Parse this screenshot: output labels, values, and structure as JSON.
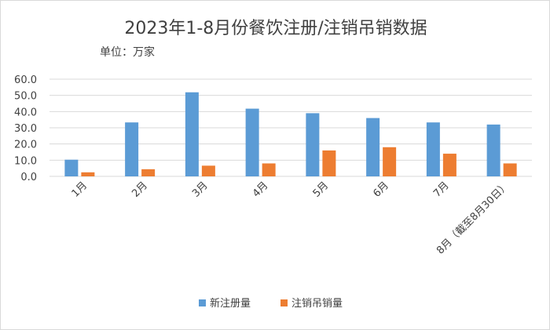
{
  "chart_data": {
    "type": "bar",
    "title": "2023年1-8月份餐饮注册/注销吊销数据",
    "subtitle": "单位：万家",
    "categories": [
      "1月",
      "2月",
      "3月",
      "4月",
      "5月",
      "6月",
      "7月",
      "8月（截至8月30日）"
    ],
    "series": [
      {
        "name": "新注册量",
        "color": "#5b9bd5",
        "values": [
          10.3,
          33.3,
          51.9,
          41.8,
          39.0,
          36.0,
          33.3,
          32.0
        ]
      },
      {
        "name": "注销吊销量",
        "color": "#ed7d31",
        "values": [
          2.5,
          4.4,
          6.6,
          8.0,
          16.0,
          18.0,
          14.0,
          8.0
        ]
      }
    ],
    "yticks": [
      "0.0",
      "10.0",
      "20.0",
      "30.0",
      "40.0",
      "50.0",
      "60.0"
    ],
    "ylim": [
      0,
      60
    ],
    "xlabel": "",
    "ylabel": "",
    "grid": true,
    "legend_position": "bottom"
  }
}
